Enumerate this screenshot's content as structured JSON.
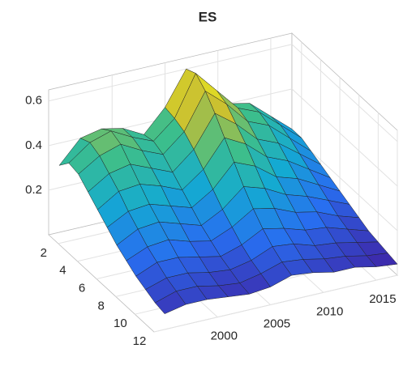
{
  "chart_data": {
    "type": "surface",
    "title": "ES",
    "x": [
      1995,
      1997,
      1999,
      2001,
      2003,
      2005,
      2007,
      2009,
      2011,
      2013,
      2015,
      2017
    ],
    "y": [
      1,
      2,
      3,
      4,
      5,
      6,
      7,
      8,
      9,
      10,
      11,
      12
    ],
    "z": [
      [
        0.3,
        0.4,
        0.42,
        0.4,
        0.35,
        0.45,
        0.6,
        0.5,
        0.4,
        0.38,
        0.3,
        0.22
      ],
      [
        0.35,
        0.42,
        0.45,
        0.4,
        0.36,
        0.44,
        0.62,
        0.52,
        0.42,
        0.38,
        0.3,
        0.22
      ],
      [
        0.34,
        0.4,
        0.43,
        0.38,
        0.34,
        0.42,
        0.58,
        0.5,
        0.4,
        0.36,
        0.28,
        0.2
      ],
      [
        0.3,
        0.36,
        0.38,
        0.34,
        0.3,
        0.38,
        0.52,
        0.45,
        0.36,
        0.32,
        0.25,
        0.18
      ],
      [
        0.26,
        0.32,
        0.33,
        0.3,
        0.26,
        0.33,
        0.45,
        0.4,
        0.32,
        0.28,
        0.22,
        0.16
      ],
      [
        0.22,
        0.27,
        0.28,
        0.25,
        0.22,
        0.28,
        0.38,
        0.34,
        0.27,
        0.24,
        0.19,
        0.14
      ],
      [
        0.18,
        0.23,
        0.24,
        0.21,
        0.18,
        0.23,
        0.31,
        0.28,
        0.23,
        0.2,
        0.16,
        0.12
      ],
      [
        0.15,
        0.19,
        0.2,
        0.17,
        0.15,
        0.19,
        0.25,
        0.23,
        0.19,
        0.17,
        0.13,
        0.1
      ],
      [
        0.12,
        0.16,
        0.16,
        0.14,
        0.12,
        0.15,
        0.2,
        0.18,
        0.15,
        0.14,
        0.11,
        0.08
      ],
      [
        0.1,
        0.13,
        0.13,
        0.11,
        0.1,
        0.12,
        0.16,
        0.15,
        0.12,
        0.11,
        0.09,
        0.07
      ],
      [
        0.08,
        0.11,
        0.11,
        0.09,
        0.08,
        0.1,
        0.13,
        0.12,
        0.1,
        0.09,
        0.07,
        0.06
      ],
      [
        0.07,
        0.09,
        0.09,
        0.08,
        0.07,
        0.08,
        0.11,
        0.1,
        0.08,
        0.08,
        0.06,
        0.05
      ]
    ],
    "xlim": [
      1994,
      2017
    ],
    "ylim": [
      1,
      12
    ],
    "zlim": [
      0,
      0.65
    ],
    "xticks": [
      2000,
      2005,
      2010,
      2015
    ],
    "yticks": [
      2,
      4,
      6,
      8,
      10,
      12
    ],
    "zticks": [
      0.2,
      0.4,
      0.6
    ],
    "grid": true
  }
}
